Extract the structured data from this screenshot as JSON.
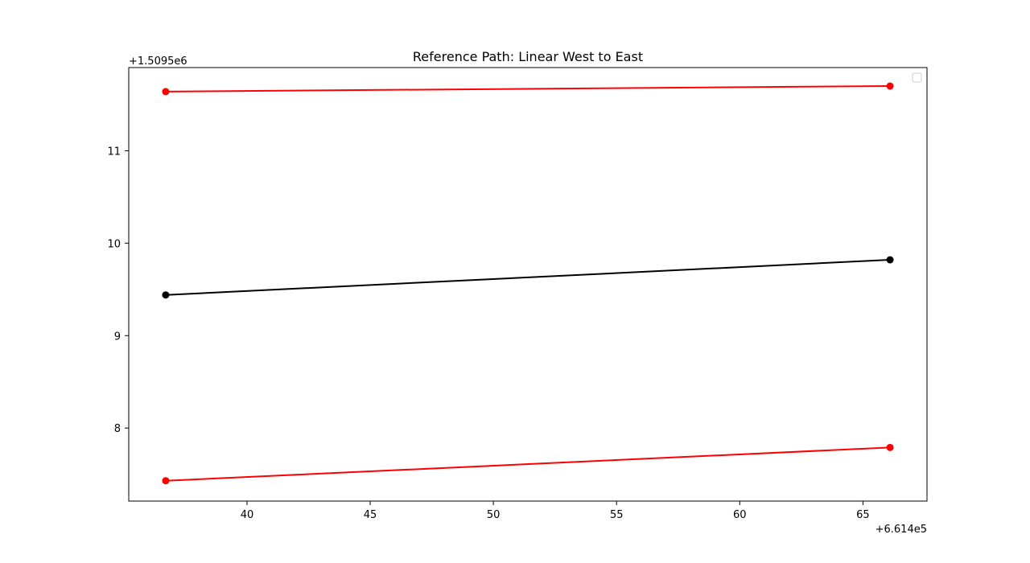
{
  "chart_data": {
    "type": "line",
    "title": "Reference Path: Linear West to East",
    "xlabel": "",
    "ylabel": "",
    "x_offset_label": "+6.614e5",
    "y_offset_label": "+1.5095e6",
    "xlim": [
      35.2,
      67.6
    ],
    "ylim": [
      7.21,
      11.9
    ],
    "x_ticks": [
      40,
      45,
      50,
      55,
      60,
      65
    ],
    "y_ticks": [
      8,
      9,
      10,
      11
    ],
    "grid": false,
    "legend": "top-right",
    "legend_entries": [],
    "series": [
      {
        "color": "#ff0000",
        "x": [
          36.7,
          66.1
        ],
        "y": [
          11.64,
          11.7
        ]
      },
      {
        "color": "#000000",
        "x": [
          36.7,
          66.1
        ],
        "y": [
          9.44,
          9.82
        ]
      },
      {
        "color": "#ff0000",
        "x": [
          36.7,
          66.1
        ],
        "y": [
          7.43,
          7.79
        ]
      }
    ]
  }
}
